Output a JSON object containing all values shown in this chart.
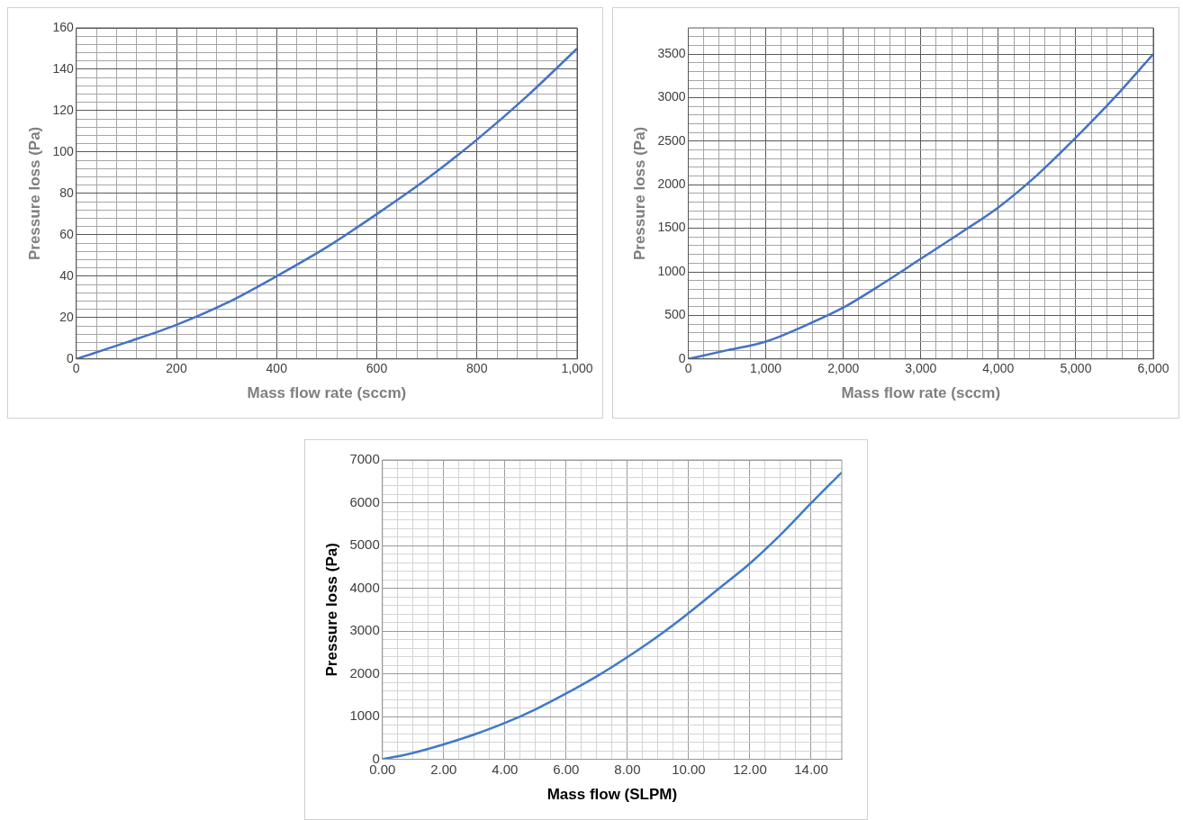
{
  "chart_data": [
    {
      "type": "line",
      "xlabel": "Mass flow rate (sccm)",
      "ylabel": "Pressure loss (Pa)",
      "grid": true,
      "legend": false,
      "series": [
        {
          "color": "#4472c4",
          "x": [
            0,
            100,
            200,
            300,
            400,
            500,
            600,
            700,
            800,
            900,
            1000
          ],
          "values": [
            0,
            8,
            16.5,
            27,
            40,
            54,
            70,
            87,
            106,
            127,
            150
          ]
        }
      ],
      "xlim": [
        0,
        1000
      ],
      "ylim": [
        0,
        160
      ],
      "xticks": [
        0,
        {
          "value": 40,
          "label": null
        },
        {
          "value": 80,
          "label": null
        },
        {
          "value": 120,
          "label": null
        },
        {
          "value": 160,
          "label": null
        },
        200,
        {
          "value": 240,
          "label": null
        },
        {
          "value": 280,
          "label": null
        },
        {
          "value": 320,
          "label": null
        },
        {
          "value": 360,
          "label": null
        },
        400,
        {
          "value": 440,
          "label": null
        },
        {
          "value": 480,
          "label": null
        },
        {
          "value": 520,
          "label": null
        },
        {
          "value": 560,
          "label": null
        },
        600,
        {
          "value": 640,
          "label": null
        },
        {
          "value": 680,
          "label": null
        },
        {
          "value": 720,
          "label": null
        },
        {
          "value": 760,
          "label": null
        },
        800,
        {
          "value": 840,
          "label": null
        },
        {
          "value": 880,
          "label": null
        },
        {
          "value": 920,
          "label": null
        },
        {
          "value": 960,
          "label": null
        },
        {
          "value": 1000,
          "label": "1,000"
        }
      ],
      "yticks": [
        0,
        {
          "value": 4,
          "label": null
        },
        {
          "value": 8,
          "label": null
        },
        {
          "value": 12,
          "label": null
        },
        {
          "value": 16,
          "label": null
        },
        20,
        {
          "value": 24,
          "label": null
        },
        {
          "value": 28,
          "label": null
        },
        {
          "value": 32,
          "label": null
        },
        {
          "value": 36,
          "label": null
        },
        40,
        {
          "value": 44,
          "label": null
        },
        {
          "value": 48,
          "label": null
        },
        {
          "value": 52,
          "label": null
        },
        {
          "value": 56,
          "label": null
        },
        60,
        {
          "value": 64,
          "label": null
        },
        {
          "value": 68,
          "label": null
        },
        {
          "value": 72,
          "label": null
        },
        {
          "value": 76,
          "label": null
        },
        80,
        {
          "value": 84,
          "label": null
        },
        {
          "value": 88,
          "label": null
        },
        {
          "value": 92,
          "label": null
        },
        {
          "value": 96,
          "label": null
        },
        100,
        {
          "value": 104,
          "label": null
        },
        {
          "value": 108,
          "label": null
        },
        {
          "value": 112,
          "label": null
        },
        {
          "value": 116,
          "label": null
        },
        120,
        {
          "value": 124,
          "label": null
        },
        {
          "value": 128,
          "label": null
        },
        {
          "value": 132,
          "label": null
        },
        {
          "value": 136,
          "label": null
        },
        140,
        {
          "value": 144,
          "label": null
        },
        {
          "value": 148,
          "label": null
        },
        {
          "value": 152,
          "label": null
        },
        {
          "value": 156,
          "label": null
        },
        160
      ]
    },
    {
      "type": "line",
      "xlabel": "Mass flow rate (sccm)",
      "ylabel": "Pressure loss (Pa)",
      "grid": true,
      "legend": false,
      "series": [
        {
          "color": "#4472c4",
          "x": [
            0,
            500,
            1000,
            1500,
            2000,
            2500,
            3000,
            3500,
            4000,
            4500,
            5000,
            5500,
            6000
          ],
          "values": [
            0,
            100,
            200,
            380,
            590,
            860,
            1150,
            1440,
            1740,
            2110,
            2540,
            3000,
            3500
          ]
        }
      ],
      "xlim": [
        0,
        6000
      ],
      "ylim": [
        0,
        3800
      ],
      "xticks": [
        0,
        {
          "value": 200,
          "label": null
        },
        {
          "value": 400,
          "label": null
        },
        {
          "value": 600,
          "label": null
        },
        {
          "value": 800,
          "label": null
        },
        {
          "value": 1000,
          "label": "1,000"
        },
        {
          "value": 1200,
          "label": null
        },
        {
          "value": 1400,
          "label": null
        },
        {
          "value": 1600,
          "label": null
        },
        {
          "value": 1800,
          "label": null
        },
        {
          "value": 2000,
          "label": "2,000"
        },
        {
          "value": 2200,
          "label": null
        },
        {
          "value": 2400,
          "label": null
        },
        {
          "value": 2600,
          "label": null
        },
        {
          "value": 2800,
          "label": null
        },
        {
          "value": 3000,
          "label": "3,000"
        },
        {
          "value": 3200,
          "label": null
        },
        {
          "value": 3400,
          "label": null
        },
        {
          "value": 3600,
          "label": null
        },
        {
          "value": 3800,
          "label": null
        },
        {
          "value": 4000,
          "label": "4,000"
        },
        {
          "value": 4200,
          "label": null
        },
        {
          "value": 4400,
          "label": null
        },
        {
          "value": 4600,
          "label": null
        },
        {
          "value": 4800,
          "label": null
        },
        {
          "value": 5000,
          "label": "5,000"
        },
        {
          "value": 5200,
          "label": null
        },
        {
          "value": 5400,
          "label": null
        },
        {
          "value": 5600,
          "label": null
        },
        {
          "value": 5800,
          "label": null
        },
        {
          "value": 6000,
          "label": "6,000"
        }
      ],
      "yticks": [
        0,
        {
          "value": 100,
          "label": null
        },
        {
          "value": 200,
          "label": null
        },
        {
          "value": 300,
          "label": null
        },
        {
          "value": 400,
          "label": null
        },
        500,
        {
          "value": 600,
          "label": null
        },
        {
          "value": 700,
          "label": null
        },
        {
          "value": 800,
          "label": null
        },
        {
          "value": 900,
          "label": null
        },
        1000,
        {
          "value": 1100,
          "label": null
        },
        {
          "value": 1200,
          "label": null
        },
        {
          "value": 1300,
          "label": null
        },
        {
          "value": 1400,
          "label": null
        },
        1500,
        {
          "value": 1600,
          "label": null
        },
        {
          "value": 1700,
          "label": null
        },
        {
          "value": 1800,
          "label": null
        },
        {
          "value": 1900,
          "label": null
        },
        2000,
        {
          "value": 2100,
          "label": null
        },
        {
          "value": 2200,
          "label": null
        },
        {
          "value": 2300,
          "label": null
        },
        {
          "value": 2400,
          "label": null
        },
        2500,
        {
          "value": 2600,
          "label": null
        },
        {
          "value": 2700,
          "label": null
        },
        {
          "value": 2800,
          "label": null
        },
        {
          "value": 2900,
          "label": null
        },
        3000,
        {
          "value": 3100,
          "label": null
        },
        {
          "value": 3200,
          "label": null
        },
        {
          "value": 3300,
          "label": null
        },
        {
          "value": 3400,
          "label": null
        },
        3500,
        {
          "value": 3600,
          "label": null
        },
        {
          "value": 3700,
          "label": null
        }
      ]
    },
    {
      "type": "line",
      "xlabel": "Mass flow (SLPM)",
      "ylabel": "Pressure loss (Pa)",
      "grid": true,
      "legend": false,
      "series": [
        {
          "color": "#3f7ac8",
          "x": [
            0,
            1,
            2,
            3,
            4,
            5,
            6,
            7,
            8,
            9,
            10,
            11,
            12,
            13,
            14,
            15
          ],
          "values": [
            0,
            150,
            350,
            580,
            850,
            1170,
            1540,
            1940,
            2390,
            2880,
            3420,
            4000,
            4580,
            5250,
            5990,
            6710
          ]
        }
      ],
      "xlim": [
        0,
        15
      ],
      "ylim": [
        0,
        7000
      ],
      "xticks": [
        {
          "value": 0,
          "label": "0.00"
        },
        {
          "value": 0.5,
          "label": null
        },
        {
          "value": 1,
          "label": null
        },
        {
          "value": 1.5,
          "label": null
        },
        {
          "value": 2,
          "label": "2.00"
        },
        {
          "value": 2.5,
          "label": null
        },
        {
          "value": 3,
          "label": null
        },
        {
          "value": 3.5,
          "label": null
        },
        {
          "value": 4,
          "label": "4.00"
        },
        {
          "value": 4.5,
          "label": null
        },
        {
          "value": 5,
          "label": null
        },
        {
          "value": 5.5,
          "label": null
        },
        {
          "value": 6,
          "label": "6.00"
        },
        {
          "value": 6.5,
          "label": null
        },
        {
          "value": 7,
          "label": null
        },
        {
          "value": 7.5,
          "label": null
        },
        {
          "value": 8,
          "label": "8.00"
        },
        {
          "value": 8.5,
          "label": null
        },
        {
          "value": 9,
          "label": null
        },
        {
          "value": 9.5,
          "label": null
        },
        {
          "value": 10,
          "label": "10.00"
        },
        {
          "value": 10.5,
          "label": null
        },
        {
          "value": 11,
          "label": null
        },
        {
          "value": 11.5,
          "label": null
        },
        {
          "value": 12,
          "label": "12.00"
        },
        {
          "value": 12.5,
          "label": null
        },
        {
          "value": 13,
          "label": null
        },
        {
          "value": 13.5,
          "label": null
        },
        {
          "value": 14,
          "label": "14.00"
        },
        {
          "value": 14.5,
          "label": null
        }
      ],
      "yticks": [
        0,
        {
          "value": 200,
          "label": null
        },
        {
          "value": 400,
          "label": null
        },
        {
          "value": 600,
          "label": null
        },
        {
          "value": 800,
          "label": null
        },
        1000,
        {
          "value": 1200,
          "label": null
        },
        {
          "value": 1400,
          "label": null
        },
        {
          "value": 1600,
          "label": null
        },
        {
          "value": 1800,
          "label": null
        },
        2000,
        {
          "value": 2200,
          "label": null
        },
        {
          "value": 2400,
          "label": null
        },
        {
          "value": 2600,
          "label": null
        },
        {
          "value": 2800,
          "label": null
        },
        3000,
        {
          "value": 3200,
          "label": null
        },
        {
          "value": 3400,
          "label": null
        },
        {
          "value": 3600,
          "label": null
        },
        {
          "value": 3800,
          "label": null
        },
        4000,
        {
          "value": 4200,
          "label": null
        },
        {
          "value": 4400,
          "label": null
        },
        {
          "value": 4600,
          "label": null
        },
        {
          "value": 4800,
          "label": null
        },
        5000,
        {
          "value": 5200,
          "label": null
        },
        {
          "value": 5400,
          "label": null
        },
        {
          "value": 5600,
          "label": null
        },
        {
          "value": 5800,
          "label": null
        },
        6000,
        {
          "value": 6200,
          "label": null
        },
        {
          "value": 6400,
          "label": null
        },
        {
          "value": 6600,
          "label": null
        },
        {
          "value": 6800,
          "label": null
        },
        7000
      ]
    }
  ]
}
